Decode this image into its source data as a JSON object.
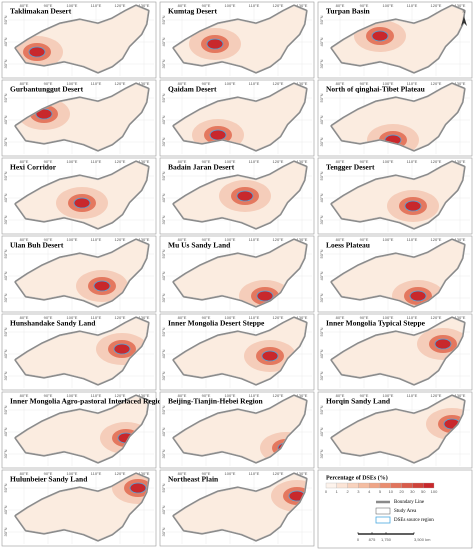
{
  "panels": [
    {
      "title": "Taklimakan Desert"
    },
    {
      "title": "Kumtag Desert"
    },
    {
      "title": "Turpan Basin"
    },
    {
      "title": "Gurbantunggut Desert"
    },
    {
      "title": "Qaidam Desert"
    },
    {
      "title": "North of qinghai-Tibet Plateau"
    },
    {
      "title": "Hexi Corridor"
    },
    {
      "title": "Badain Jaran Desert"
    },
    {
      "title": "Tengger Desert"
    },
    {
      "title": "Ulan Buh Desert"
    },
    {
      "title": "Mu Us Sandy Land"
    },
    {
      "title": "Loess Plateau"
    },
    {
      "title": "Hunshandake Sandy Land"
    },
    {
      "title": "Inner Mongolia Desert Steppe"
    },
    {
      "title": "Inner Mongolia Typical Steppe"
    },
    {
      "title": "Inner Mongolia Agro-pastoral Interlaced Region"
    },
    {
      "title": "Beijing-Tianjin-Hebei Region"
    },
    {
      "title": "Horqin Sandy Land"
    },
    {
      "title": "Hulunbeier Sandy Land"
    },
    {
      "title": "Northeast Plain"
    }
  ],
  "lon_labels": [
    "80°E",
    "90°E",
    "100°E",
    "110°E",
    "120°E",
    "130°E"
  ],
  "lat_labels": [
    "30°N",
    "40°N",
    "50°N"
  ],
  "north": "N",
  "legend": {
    "title": "Percentage of DSEs (%)",
    "ticks": [
      "0",
      "1",
      "2",
      "3",
      "4",
      "5",
      "10",
      "20",
      "30",
      "50",
      "100"
    ],
    "items": [
      "Boundary Line",
      "Study Area",
      "DSEs source region"
    ],
    "scale": [
      "0",
      "875",
      "1,750",
      "3,500 km"
    ]
  }
}
